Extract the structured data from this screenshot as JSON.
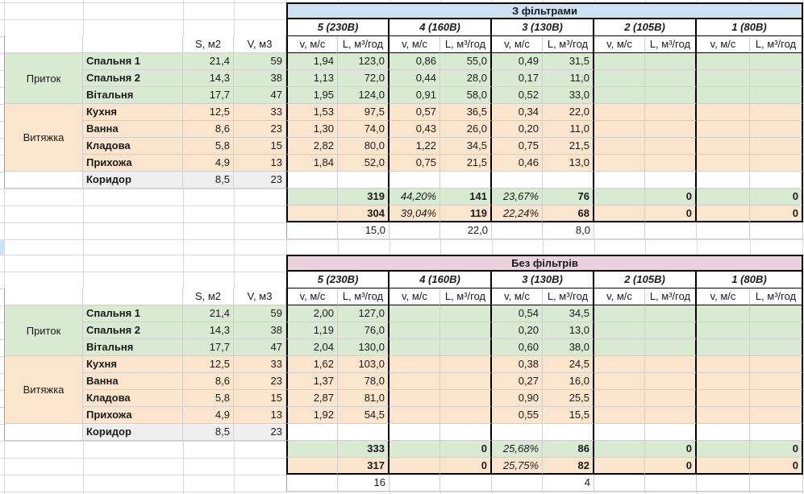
{
  "palette": {
    "green": "#d9ead3",
    "orange": "#fce5cd",
    "gray": "#efefef",
    "blue_header": "#cfe2f3",
    "pink_header": "#ead1dc"
  },
  "left": {
    "s_header": "S, м2",
    "v_header": "V, м3",
    "intake_label": "Приток",
    "exhaust_label": "Витяжка",
    "rooms": [
      {
        "name": "Спальня 1",
        "s": "21,4",
        "v": "59"
      },
      {
        "name": "Спальня 2",
        "s": "14,3",
        "v": "38"
      },
      {
        "name": "Вітальня",
        "s": "17,7",
        "v": "47"
      },
      {
        "name": "Кухня",
        "s": "12,5",
        "v": "33"
      },
      {
        "name": "Ванна",
        "s": "8,6",
        "v": "23"
      },
      {
        "name": "Кладова",
        "s": "5,8",
        "v": "15"
      },
      {
        "name": "Прихожа",
        "s": "4,9",
        "v": "13"
      },
      {
        "name": "Коридор",
        "s": "8,5",
        "v": "23"
      }
    ]
  },
  "speeds": {
    "labels": [
      "5 (230В)",
      "4 (160В)",
      "3 (130В)",
      "2 (105В)",
      "1 (80В)"
    ],
    "v": "v, м/с",
    "l": "L, м³/год"
  },
  "t1": {
    "title": "З фільтрами",
    "rows": [
      {
        "v5": "1,94",
        "l5": "123,0",
        "v4": "0,86",
        "l4": "55,0",
        "v3": "0,49",
        "l3": "31,5"
      },
      {
        "v5": "1,13",
        "l5": "72,0",
        "v4": "0,44",
        "l4": "28,0",
        "v3": "0,17",
        "l3": "11,0"
      },
      {
        "v5": "1,95",
        "l5": "124,0",
        "v4": "0,91",
        "l4": "58,0",
        "v3": "0,52",
        "l3": "33,0"
      },
      {
        "v5": "1,53",
        "l5": "97,5",
        "v4": "0,57",
        "l4": "36,5",
        "v3": "0,34",
        "l3": "22,0"
      },
      {
        "v5": "1,30",
        "l5": "74,0",
        "v4": "0,43",
        "l4": "26,0",
        "v3": "0,20",
        "l3": "11,0"
      },
      {
        "v5": "2,82",
        "l5": "80,0",
        "v4": "1,22",
        "l4": "34,5",
        "v3": "0,75",
        "l3": "21,5"
      },
      {
        "v5": "1,84",
        "l5": "52,0",
        "v4": "0,75",
        "l4": "21,5",
        "v3": "0,46",
        "l3": "13,0"
      }
    ],
    "sum_in": {
      "l5": "319",
      "v4": "44,20%",
      "l4": "141",
      "v3": "23,67%",
      "l3": "76",
      "l2": "0",
      "l1": "0"
    },
    "sum_out": {
      "l5": "304",
      "v4": "39,04%",
      "l4": "119",
      "v3": "22,24%",
      "l3": "68",
      "l2": "0",
      "l1": "0"
    },
    "footer": {
      "l5": "15,0",
      "l4": "22,0",
      "l3": "8,0"
    }
  },
  "t2": {
    "title": "Без фільтрів",
    "rows": [
      {
        "v5": "2,00",
        "l5": "127,0",
        "v3": "0,54",
        "l3": "34,5"
      },
      {
        "v5": "1,19",
        "l5": "76,0",
        "v3": "0,20",
        "l3": "13,0"
      },
      {
        "v5": "2,04",
        "l5": "130,0",
        "v3": "0,60",
        "l3": "38,0"
      },
      {
        "v5": "1,62",
        "l5": "103,0",
        "v3": "0,38",
        "l3": "24,5"
      },
      {
        "v5": "1,37",
        "l5": "78,0",
        "v3": "0,27",
        "l3": "16,0"
      },
      {
        "v5": "2,87",
        "l5": "81,0",
        "v3": "0,90",
        "l3": "25,5"
      },
      {
        "v5": "1,92",
        "l5": "54,5",
        "v3": "0,55",
        "l3": "15,5"
      }
    ],
    "sum_in": {
      "l5": "333",
      "l4": "0",
      "v3": "25,68%",
      "l3": "86",
      "l2": "0",
      "l1": "0"
    },
    "sum_out": {
      "l5": "317",
      "l4": "0",
      "v3": "25,75%",
      "l3": "82",
      "l2": "0",
      "l1": "0"
    },
    "footer": {
      "l5": "16",
      "l3": "4"
    }
  }
}
